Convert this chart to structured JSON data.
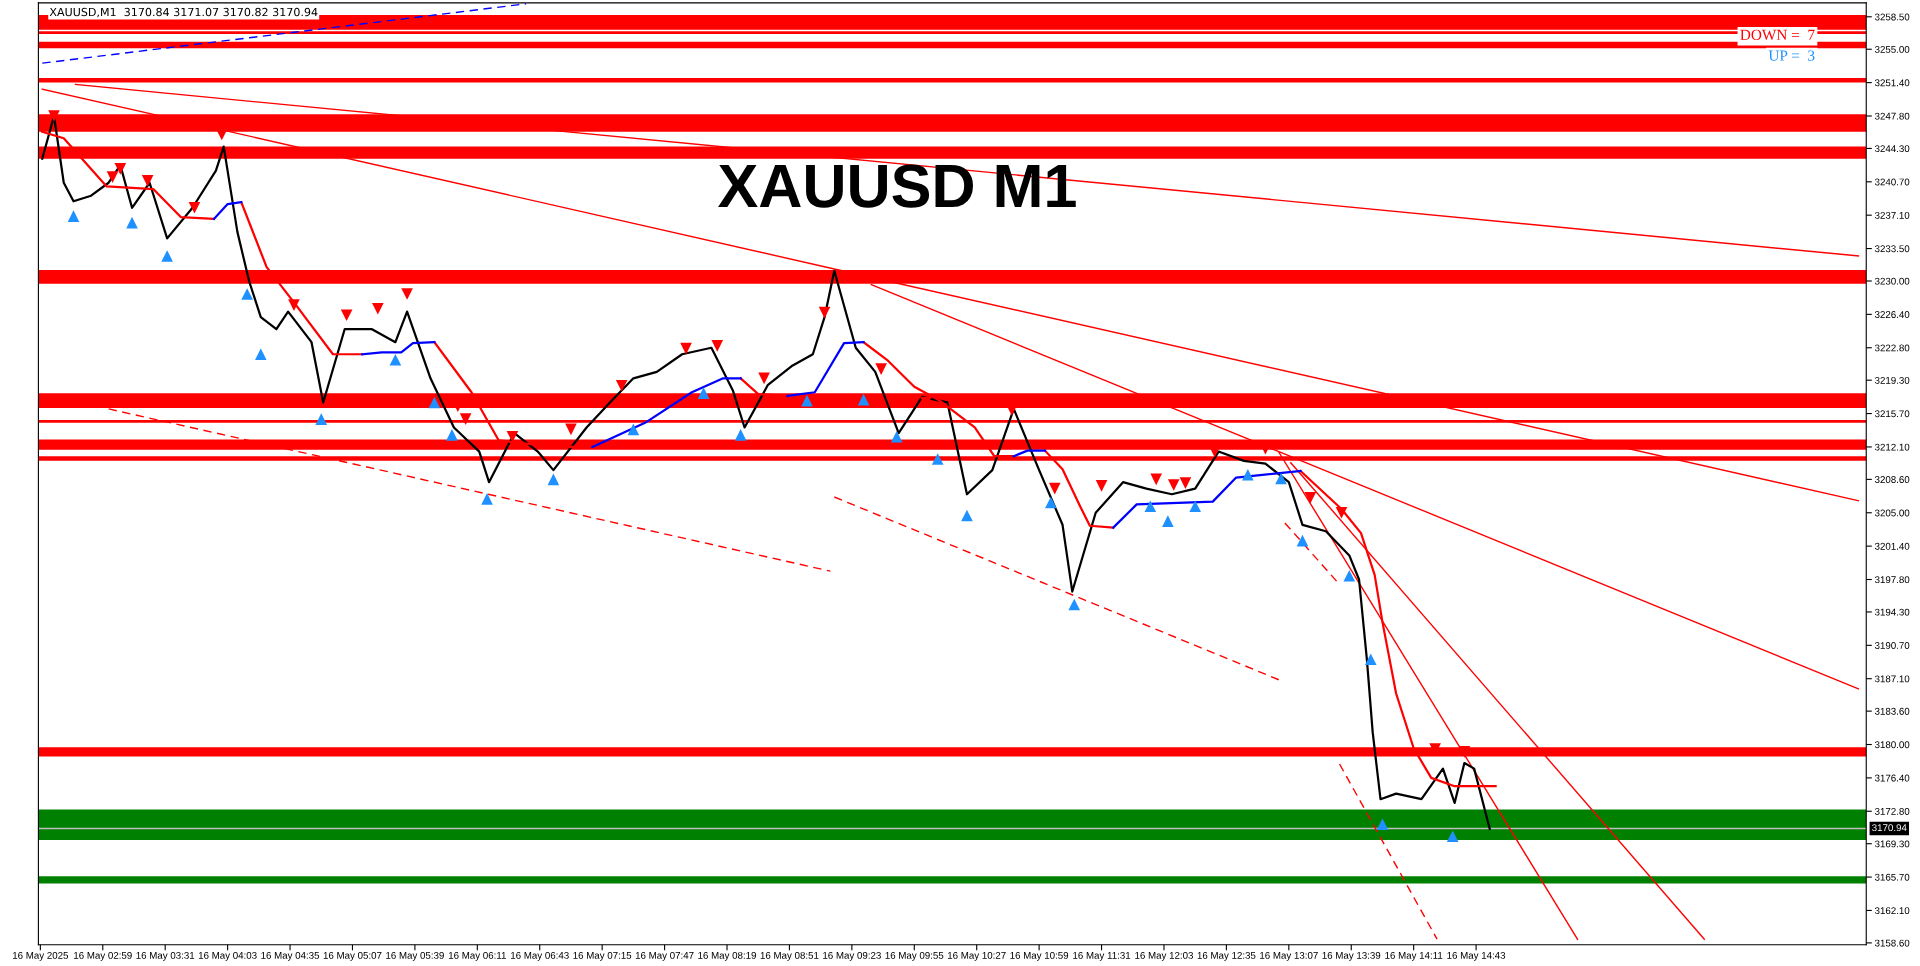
{
  "chart_data": {
    "type": "line",
    "title": "XAUUSD M1",
    "subtitle": "XAUUSD,M1  3170.84 3171.07 3170.82 3170.94",
    "annotations": [
      "DOWN =  7",
      "UP =  3"
    ],
    "xlim": [
      "2025-05-16T02:26",
      "2025-05-16T18:03"
    ],
    "xticks": [
      {
        "value": "2025-05-16T02:27",
        "label": "16 May 2025"
      },
      {
        "value": "2025-05-16T02:59",
        "label": "16 May 02:59"
      },
      {
        "value": "2025-05-16T03:31",
        "label": "16 May 03:31"
      },
      {
        "value": "2025-05-16T04:03",
        "label": "16 May 04:03"
      },
      {
        "value": "2025-05-16T04:35",
        "label": "16 May 04:35"
      },
      {
        "value": "2025-05-16T05:07",
        "label": "16 May 05:07"
      },
      {
        "value": "2025-05-16T05:39",
        "label": "16 May 05:39"
      },
      {
        "value": "2025-05-16T06:11",
        "label": "16 May 06:11"
      },
      {
        "value": "2025-05-16T06:43",
        "label": "16 May 06:43"
      },
      {
        "value": "2025-05-16T07:15",
        "label": "16 May 07:15"
      },
      {
        "value": "2025-05-16T07:47",
        "label": "16 May 07:47"
      },
      {
        "value": "2025-05-16T08:19",
        "label": "16 May 08:19"
      },
      {
        "value": "2025-05-16T08:51",
        "label": "16 May 08:51"
      },
      {
        "value": "2025-05-16T09:23",
        "label": "16 May 09:23"
      },
      {
        "value": "2025-05-16T09:55",
        "label": "16 May 09:55"
      },
      {
        "value": "2025-05-16T10:27",
        "label": "16 May 10:27"
      },
      {
        "value": "2025-05-16T10:59",
        "label": "16 May 10:59"
      },
      {
        "value": "2025-05-16T11:31",
        "label": "16 May 11:31"
      },
      {
        "value": "2025-05-16T12:03",
        "label": "16 May 12:03"
      },
      {
        "value": "2025-05-16T12:35",
        "label": "16 May 12:35"
      },
      {
        "value": "2025-05-16T13:07",
        "label": "16 May 13:07"
      },
      {
        "value": "2025-05-16T13:39",
        "label": "16 May 13:39"
      },
      {
        "value": "2025-05-16T14:11",
        "label": "16 May 14:11"
      },
      {
        "value": "2025-05-16T14:43",
        "label": "16 May 14:43"
      }
    ],
    "ylim": [
      3158.4,
      3260.0
    ],
    "yticks": [
      {
        "value": 3158.6,
        "label": "3158.60"
      },
      {
        "value": 3162.1,
        "label": "3162.10"
      },
      {
        "value": 3165.7,
        "label": "3165.70"
      },
      {
        "value": 3169.3,
        "label": "3169.30"
      },
      {
        "value": 3172.8,
        "label": "3172.80"
      },
      {
        "value": 3176.4,
        "label": "3176.40"
      },
      {
        "value": 3180.0,
        "label": "3180.00"
      },
      {
        "value": 3183.6,
        "label": "3183.60"
      },
      {
        "value": 3187.1,
        "label": "3187.10"
      },
      {
        "value": 3190.7,
        "label": "3190.70"
      },
      {
        "value": 3194.3,
        "label": "3194.30"
      },
      {
        "value": 3197.8,
        "label": "3197.80"
      },
      {
        "value": 3201.4,
        "label": "3201.40"
      },
      {
        "value": 3205.0,
        "label": "3205.00"
      },
      {
        "value": 3208.6,
        "label": "3208.60"
      },
      {
        "value": 3212.1,
        "label": "3212.10"
      },
      {
        "value": 3215.7,
        "label": "3215.70"
      },
      {
        "value": 3219.3,
        "label": "3219.30"
      },
      {
        "value": 3222.8,
        "label": "3222.80"
      },
      {
        "value": 3226.4,
        "label": "3226.40"
      },
      {
        "value": 3230.0,
        "label": "3230.00"
      },
      {
        "value": 3233.5,
        "label": "3233.50"
      },
      {
        "value": 3237.1,
        "label": "3237.10"
      },
      {
        "value": 3240.7,
        "label": "3240.70"
      },
      {
        "value": 3244.3,
        "label": "3244.30"
      },
      {
        "value": 3247.8,
        "label": "3247.80"
      },
      {
        "value": 3251.4,
        "label": "3251.40"
      },
      {
        "value": 3255.0,
        "label": "3255.00"
      },
      {
        "value": 3258.5,
        "label": "3258.50"
      }
    ],
    "grid": false,
    "bands": [
      {
        "axis": "y",
        "from": 3257.1,
        "to": 3258.7,
        "color": "#ff0000"
      },
      {
        "axis": "y",
        "from": 3256.65,
        "to": 3256.95,
        "color": "#ff0000"
      },
      {
        "axis": "y",
        "from": 3255.1,
        "to": 3255.8,
        "color": "#ff0000"
      },
      {
        "axis": "y",
        "from": 3251.4,
        "to": 3251.9,
        "color": "#ff0000"
      },
      {
        "axis": "y",
        "from": 3246.1,
        "to": 3248.0,
        "color": "#ff0000"
      },
      {
        "axis": "y",
        "from": 3243.2,
        "to": 3244.5,
        "color": "#ff0000"
      },
      {
        "axis": "y",
        "from": 3229.7,
        "to": 3231.2,
        "color": "#ff0000"
      },
      {
        "axis": "y",
        "from": 3216.3,
        "to": 3217.9,
        "color": "#ff0000"
      },
      {
        "axis": "y",
        "from": 3214.7,
        "to": 3215.0,
        "color": "#ff0000"
      },
      {
        "axis": "y",
        "from": 3211.8,
        "to": 3212.9,
        "color": "#ff0000"
      },
      {
        "axis": "y",
        "from": 3210.6,
        "to": 3211.1,
        "color": "#ff0000"
      },
      {
        "axis": "y",
        "from": 3178.7,
        "to": 3179.7,
        "color": "#ff0000"
      },
      {
        "axis": "y",
        "from": 3169.7,
        "to": 3173.0,
        "color": "#008000"
      },
      {
        "axis": "y",
        "from": 3165.0,
        "to": 3165.8,
        "color": "#008000"
      }
    ],
    "ref_lines": [
      {
        "axis": "y",
        "value": 3170.94,
        "label": "3170.94",
        "color": "#c0c0c0"
      }
    ],
    "series": [
      {
        "color": "#ff0000",
        "x": [
          "2025-05-16T02:45",
          "2025-05-16T17:59"
        ],
        "values": [
          3251.2,
          3232.7
        ],
        "line_style": "solid"
      },
      {
        "color": "#ff0000",
        "x": [
          "2025-05-16T02:28",
          "2025-05-16T09:14",
          "2025-05-16T17:59"
        ],
        "values": [
          3250.7,
          3231.3,
          3206.3
        ],
        "line_style": "solid"
      },
      {
        "color": "#ff0000",
        "x": [
          "2025-05-16T09:33",
          "2025-05-16T17:59"
        ],
        "values": [
          3229.6,
          3186.0
        ],
        "line_style": "solid"
      },
      {
        "color": "#ff0000",
        "x": [
          "2025-05-16T13:08",
          "2025-05-16T16:40"
        ],
        "values": [
          3210.4,
          3159.0
        ],
        "line_style": "solid"
      },
      {
        "color": "#ff0000",
        "x": [
          "2025-05-16T13:02",
          "2025-05-16T15:35"
        ],
        "values": [
          3211.5,
          3159.0
        ],
        "line_style": "solid"
      },
      {
        "color": "#0000ff",
        "x": [
          "2025-05-16T02:28",
          "2025-05-16T06:36"
        ],
        "values": [
          3253.5,
          3259.9
        ],
        "line_style": "dashed"
      },
      {
        "color": "#ff0000",
        "x": [
          "2025-05-16T03:02",
          "2025-05-16T09:12"
        ],
        "values": [
          3216.2,
          3198.7
        ],
        "line_style": "dashed"
      },
      {
        "color": "#ff0000",
        "x": [
          "2025-05-16T09:14",
          "2025-05-16T13:04"
        ],
        "values": [
          3206.7,
          3186.8
        ],
        "line_style": "dashed"
      },
      {
        "color": "#ff0000",
        "x": [
          "2025-05-16T13:05",
          "2025-05-16T13:32"
        ],
        "values": [
          3203.9,
          3197.5
        ],
        "line_style": "dashed"
      },
      {
        "color": "#ff0000",
        "x": [
          "2025-05-16T13:33",
          "2025-05-16T14:23"
        ],
        "values": [
          3177.9,
          3159.0
        ],
        "line_style": "dashed"
      },
      {
        "color": "#000000",
        "line_style": "solid",
        "x": [
          "2025-05-16T02:28",
          "2025-05-16T02:34",
          "2025-05-16T02:39",
          "2025-05-16T02:44",
          "2025-05-16T02:53",
          "2025-05-16T03:02",
          "2025-05-16T03:08",
          "2025-05-16T03:14",
          "2025-05-16T03:23",
          "2025-05-16T03:32",
          "2025-05-16T03:45",
          "2025-05-16T03:57",
          "2025-05-16T04:01",
          "2025-05-16T04:08",
          "2025-05-16T04:14",
          "2025-05-16T04:20",
          "2025-05-16T04:28",
          "2025-05-16T04:34",
          "2025-05-16T04:46",
          "2025-05-16T04:52",
          "2025-05-16T05:03",
          "2025-05-16T05:17",
          "2025-05-16T05:29",
          "2025-05-16T05:35",
          "2025-05-16T05:47",
          "2025-05-16T05:59",
          "2025-05-16T06:12",
          "2025-05-16T06:17",
          "2025-05-16T06:30",
          "2025-05-16T06:42",
          "2025-05-16T06:50",
          "2025-05-16T07:07",
          "2025-05-16T07:19",
          "2025-05-16T07:31",
          "2025-05-16T07:43",
          "2025-05-16T07:56",
          "2025-05-16T08:11",
          "2025-05-16T08:22",
          "2025-05-16T08:28",
          "2025-05-16T08:40",
          "2025-05-16T08:52",
          "2025-05-16T09:03",
          "2025-05-16T09:09",
          "2025-05-16T09:14",
          "2025-05-16T09:25",
          "2025-05-16T09:35",
          "2025-05-16T09:47",
          "2025-05-16T09:59",
          "2025-05-16T10:12",
          "2025-05-16T10:22",
          "2025-05-16T10:35",
          "2025-05-16T10:46",
          "2025-05-16T10:59",
          "2025-05-16T11:11",
          "2025-05-16T11:16",
          "2025-05-16T11:28",
          "2025-05-16T11:42",
          "2025-05-16T11:54",
          "2025-05-16T12:07",
          "2025-05-16T12:19",
          "2025-05-16T12:31",
          "2025-05-16T12:44",
          "2025-05-16T12:55",
          "2025-05-16T13:07",
          "2025-05-16T13:14",
          "2025-05-16T13:26",
          "2025-05-16T13:38",
          "2025-05-16T13:43",
          "2025-05-16T13:47",
          "2025-05-16T13:50",
          "2025-05-16T13:54",
          "2025-05-16T14:02",
          "2025-05-16T14:15",
          "2025-05-16T14:26",
          "2025-05-16T14:32",
          "2025-05-16T14:37",
          "2025-05-16T14:42",
          "2025-05-16T14:50"
        ],
        "values": [
          3243.2,
          3247.8,
          3240.6,
          3238.6,
          3239.2,
          3240.6,
          3242.5,
          3237.9,
          3240.6,
          3234.6,
          3237.9,
          3241.9,
          3244.5,
          3235.3,
          3230.0,
          3226.1,
          3224.8,
          3226.7,
          3223.4,
          3216.9,
          3224.8,
          3224.8,
          3223.4,
          3226.7,
          3219.5,
          3214.2,
          3211.6,
          3208.3,
          3213.6,
          3211.6,
          3209.6,
          3214.2,
          3216.9,
          3219.5,
          3220.2,
          3222.1,
          3222.8,
          3218.2,
          3214.2,
          3218.8,
          3220.8,
          3222.1,
          3226.1,
          3231.1,
          3222.8,
          3220.2,
          3213.6,
          3217.5,
          3216.9,
          3207.0,
          3209.6,
          3216.2,
          3209.6,
          3203.7,
          3196.5,
          3205.0,
          3208.3,
          3207.6,
          3207.0,
          3207.6,
          3211.6,
          3210.6,
          3210.3,
          3208.3,
          3203.7,
          3203.0,
          3200.4,
          3197.8,
          3189.2,
          3181.3,
          3174.1,
          3174.7,
          3174.1,
          3177.4,
          3173.7,
          3178.0,
          3177.4,
          3170.9
        ]
      },
      {
        "color": "#ff0000",
        "line_style": "solid",
        "x": [
          "2025-05-16T02:28",
          "2025-05-16T02:39",
          "2025-05-16T03:01",
          "2025-05-16T03:25",
          "2025-05-16T03:39",
          "2025-05-16T03:56",
          "2025-05-16T04:03",
          "2025-05-16T04:10",
          "2025-05-16T04:23",
          "2025-05-16T04:37",
          "2025-05-16T04:57",
          "2025-05-16T05:12",
          "2025-05-16T05:22",
          "2025-05-16T05:49",
          "2025-05-16T06:08",
          "2025-05-16T06:22",
          "2025-05-16T06:51",
          "2025-05-16T07:10",
          "2025-05-16T07:37",
          "2025-05-16T08:26",
          "2025-05-16T08:35",
          "2025-05-16T08:50",
          "2025-05-16T09:04",
          "2025-05-16T09:29",
          "2025-05-16T09:41",
          "2025-05-16T09:55",
          "2025-05-16T10:08",
          "2025-05-16T10:26",
          "2025-05-16T10:36",
          "2025-05-16T10:46",
          "2025-05-16T10:53",
          "2025-05-16T11:02",
          "2025-05-16T11:11",
          "2025-05-16T11:20",
          "2025-05-16T11:25",
          "2025-05-16T11:37",
          "2025-05-16T11:49",
          "2025-05-16T13:13",
          "2025-05-16T13:34",
          "2025-05-16T13:44",
          "2025-05-16T13:51",
          "2025-05-16T13:55",
          "2025-05-16T14:02",
          "2025-05-16T14:11",
          "2025-05-16T14:20",
          "2025-05-16T14:32",
          "2025-05-16T14:53"
        ],
        "values": [
          3246.1,
          3245.4,
          3240.2,
          3239.9,
          3236.9,
          3236.7,
          null,
          3238.5,
          3231.5,
          3227.7,
          3222.1,
          3222.1,
          null,
          3223.4,
          3218.0,
          3212.8,
          3212.1,
          3212.1,
          null,
          3219.5,
          3217.8,
          3217.6,
          null,
          3223.4,
          3221.5,
          3218.6,
          3217.1,
          3214.2,
          3211.1,
          3211.1,
          null,
          3211.7,
          3209.7,
          3205.7,
          3203.6,
          3203.4,
          null,
          3209.5,
          3205.4,
          3202.8,
          3198.3,
          3193.2,
          3185.5,
          3179.6,
          3176.4,
          3175.5,
          3175.5
        ]
      },
      {
        "color": "#0000ff",
        "line_style": "solid",
        "x": [
          "2025-05-16T03:56",
          "2025-05-16T04:03",
          "2025-05-16T04:10",
          "2025-05-16T04:23",
          "2025-05-16T05:12",
          "2025-05-16T05:22",
          "2025-05-16T05:32",
          "2025-05-16T05:38",
          "2025-05-16T05:49",
          "2025-05-16T06:08",
          "2025-05-16T07:10",
          "2025-05-16T07:37",
          "2025-05-16T08:01",
          "2025-05-16T08:17",
          "2025-05-16T08:26",
          "2025-05-16T08:35",
          "2025-05-16T08:50",
          "2025-05-16T09:04",
          "2025-05-16T09:19",
          "2025-05-16T09:29",
          "2025-05-16T09:41",
          "2025-05-16T10:46",
          "2025-05-16T10:53",
          "2025-05-16T11:02",
          "2025-05-16T11:11",
          "2025-05-16T11:37",
          "2025-05-16T11:49",
          "2025-05-16T12:28",
          "2025-05-16T12:40",
          "2025-05-16T13:13"
        ],
        "values": [
          3236.7,
          3238.3,
          3238.5,
          null,
          3222.1,
          3222.3,
          3222.3,
          3223.3,
          3223.4,
          null,
          3212.1,
          3214.7,
          3218.0,
          3219.5,
          3219.5,
          null,
          3217.6,
          3218.0,
          3223.3,
          3223.4,
          null,
          3211.1,
          3211.7,
          3211.7,
          null,
          3203.4,
          3205.9,
          3206.2,
          3208.8,
          3209.5
        ]
      },
      {
        "type": "scatter",
        "color": "#ff0000",
        "marker": "triangle_down",
        "x": [
          "2025-05-16T02:34",
          "2025-05-16T03:04",
          "2025-05-16T03:08",
          "2025-05-16T03:22",
          "2025-05-16T03:46",
          "2025-05-16T04:00",
          "2025-05-16T04:37",
          "2025-05-16T05:04",
          "2025-05-16T05:20",
          "2025-05-16T05:35",
          "2025-05-16T06:01",
          "2025-05-16T06:05",
          "2025-05-16T06:29",
          "2025-05-16T06:59",
          "2025-05-16T07:25",
          "2025-05-16T07:58",
          "2025-05-16T08:14",
          "2025-05-16T08:38",
          "2025-05-16T09:09",
          "2025-05-16T09:38",
          "2025-05-16T10:01",
          "2025-05-16T10:45",
          "2025-05-16T11:07",
          "2025-05-16T11:31",
          "2025-05-16T11:59",
          "2025-05-16T12:08",
          "2025-05-16T12:14",
          "2025-05-16T12:29",
          "2025-05-16T12:55",
          "2025-05-16T13:18",
          "2025-05-16T13:34",
          "2025-05-16T14:22",
          "2025-05-16T14:37"
        ],
        "values": [
          3247.8,
          3241.2,
          3242.1,
          3240.8,
          3237.9,
          3245.8,
          3227.4,
          3226.3,
          3227.0,
          3228.6,
          3216.5,
          3215.1,
          3213.2,
          3214.0,
          3218.7,
          3222.7,
          3223.0,
          3219.5,
          3226.6,
          3220.5,
          3216.9,
          3216.1,
          3207.6,
          3207.9,
          3208.6,
          3208.0,
          3208.2,
          3211.6,
          3211.9,
          3206.6,
          3205.0,
          3179.5,
          3179.2
        ]
      },
      {
        "type": "scatter",
        "color": "#1e90ff",
        "marker": "triangle",
        "x": [
          "2025-05-16T02:44",
          "2025-05-16T03:14",
          "2025-05-16T03:32",
          "2025-05-16T04:13",
          "2025-05-16T04:20",
          "2025-05-16T04:51",
          "2025-05-16T05:29",
          "2025-05-16T05:49",
          "2025-05-16T05:58",
          "2025-05-16T06:16",
          "2025-05-16T06:50",
          "2025-05-16T07:31",
          "2025-05-16T08:07",
          "2025-05-16T08:26",
          "2025-05-16T09:00",
          "2025-05-16T09:29",
          "2025-05-16T09:46",
          "2025-05-16T10:07",
          "2025-05-16T10:22",
          "2025-05-16T11:05",
          "2025-05-16T11:17",
          "2025-05-16T11:56",
          "2025-05-16T12:05",
          "2025-05-16T12:19",
          "2025-05-16T12:46",
          "2025-05-16T13:03",
          "2025-05-16T13:14",
          "2025-05-16T13:38",
          "2025-05-16T13:49",
          "2025-05-16T13:55",
          "2025-05-16T14:31"
        ],
        "values": [
          3237.0,
          3236.3,
          3232.7,
          3228.6,
          3222.1,
          3215.1,
          3221.5,
          3216.9,
          3213.4,
          3206.5,
          3208.6,
          3214.0,
          3217.9,
          3213.4,
          3217.1,
          3217.2,
          3213.2,
          3210.8,
          3204.7,
          3206.1,
          3195.1,
          3205.7,
          3204.1,
          3205.7,
          3209.1,
          3208.7,
          3202.0,
          3198.2,
          3189.2,
          3171.4,
          3170.1
        ]
      }
    ]
  }
}
